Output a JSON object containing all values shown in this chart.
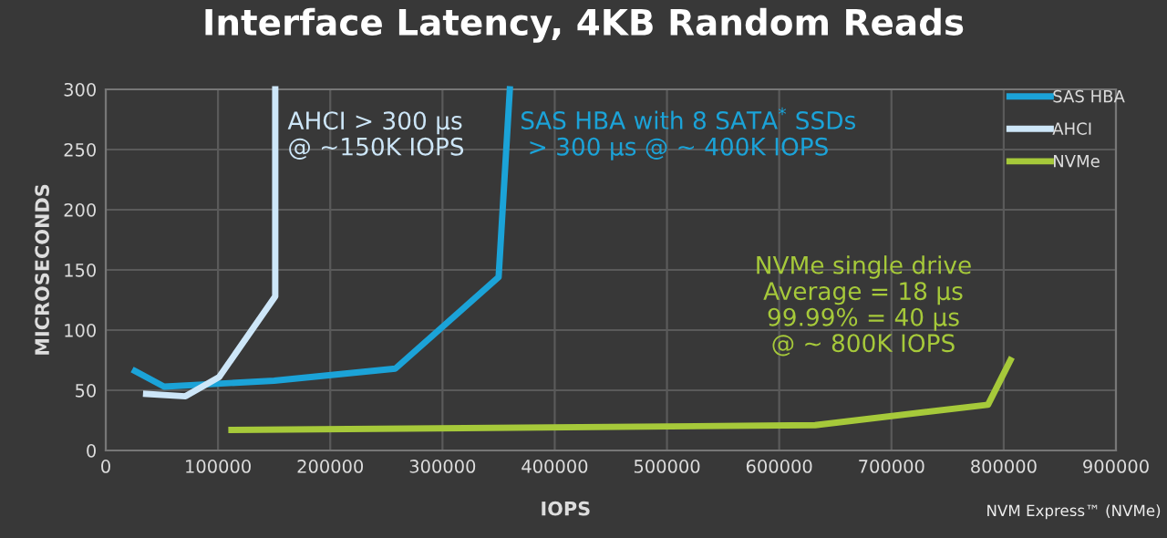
{
  "chart_data": {
    "type": "line",
    "title": "Interface Latency, 4KB Random Reads",
    "xlabel": "IOPS",
    "ylabel": "MICROSECONDS",
    "series": [
      {
        "name": "SAS HBA",
        "color": "#1ba3d8",
        "x": [
          26000,
          52000,
          150000,
          258000,
          350000,
          360000
        ],
        "values": [
          66,
          53,
          58,
          68,
          144,
          300
        ]
      },
      {
        "name": "AHCI",
        "color": "#cde6f8",
        "x": [
          36000,
          71000,
          101000,
          151000,
          151000
        ],
        "values": [
          47,
          45,
          61,
          128,
          300
        ]
      },
      {
        "name": "NVMe",
        "color": "#a6c93a",
        "x": [
          112000,
          632000,
          786000,
          806000
        ],
        "values": [
          17,
          21,
          38,
          75
        ]
      }
    ],
    "annotations": [
      "AHCI > 300 µs\n@ ~150K IOPS",
      "SAS HBA with 8 SATA$^{*}$ SSDs\n > 300 µs @ ~ 400K IOPS",
      "NVMe single drive\nAverage = 18 µs\n99.99% = 40 µs\n@ ~ 800K IOPS",
      "NVM Express™ (NVMe)"
    ],
    "xlim": [
      0,
      900000
    ],
    "ylim": [
      0,
      300
    ],
    "xticks": [
      0,
      100000,
      200000,
      300000,
      400000,
      500000,
      600000,
      700000,
      800000,
      900000
    ],
    "yticks": [
      0,
      50,
      100,
      150,
      200,
      250,
      300
    ],
    "grid": true,
    "legend": "top right",
    "marker": "none",
    "line_style": "solid"
  }
}
